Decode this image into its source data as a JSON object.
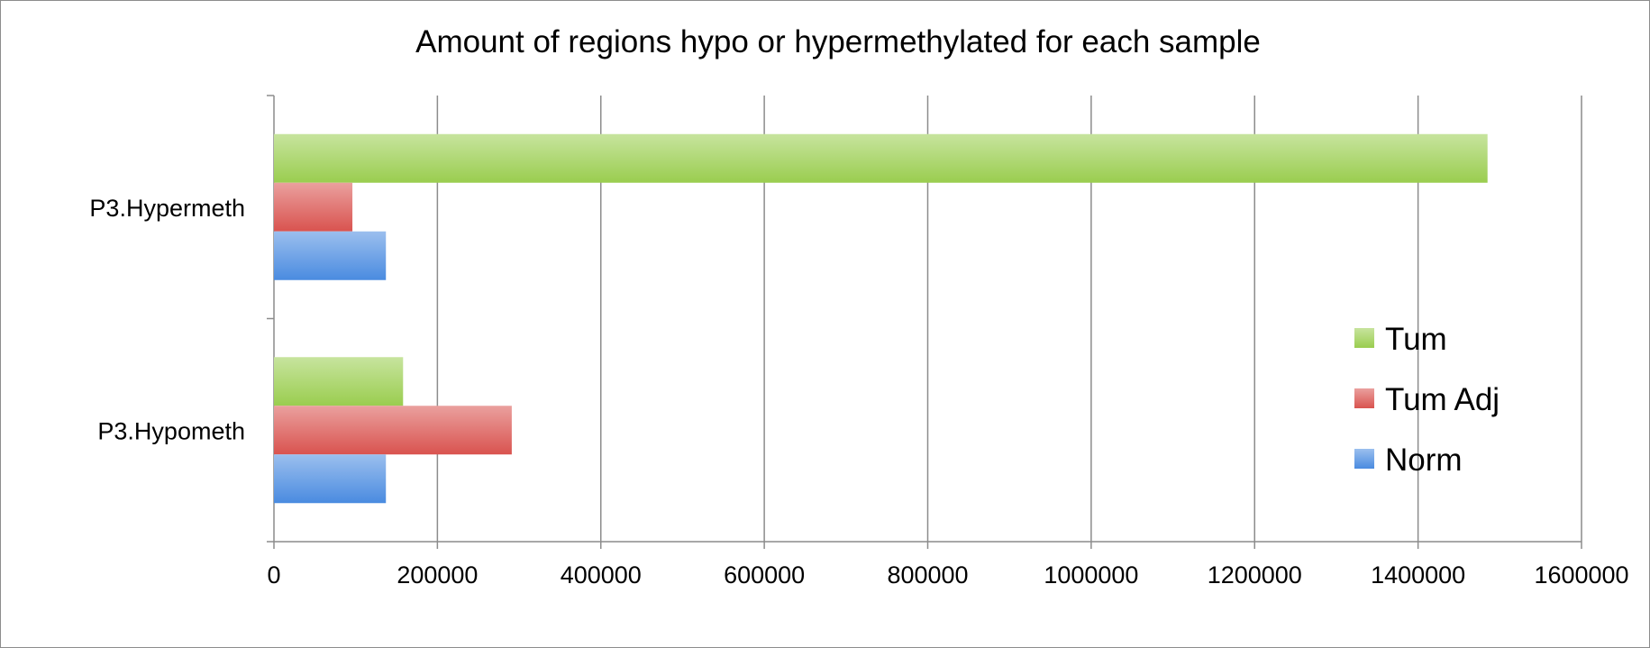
{
  "chart_data": {
    "type": "bar",
    "orientation": "horizontal",
    "title": "Amount of regions hypo or hypermethylated for each sample",
    "categories": [
      "P3.Hypermeth",
      "P3.Hypometh"
    ],
    "series": [
      {
        "name": "Tum",
        "color": "#9ACD4F",
        "values": [
          1485000,
          158000
        ]
      },
      {
        "name": "Tum Adj",
        "color": "#D9534F",
        "values": [
          96000,
          291000
        ]
      },
      {
        "name": "Norm",
        "color": "#4A8BE0",
        "values": [
          137000,
          137000
        ]
      }
    ],
    "xlim": [
      0,
      1600000
    ],
    "x_ticks": [
      "0",
      "200000",
      "400000",
      "600000",
      "800000",
      "1000000",
      "1200000",
      "1400000",
      "1600000"
    ],
    "xlabel": "",
    "ylabel": "",
    "grid": "vertical",
    "legend_position": "right"
  }
}
